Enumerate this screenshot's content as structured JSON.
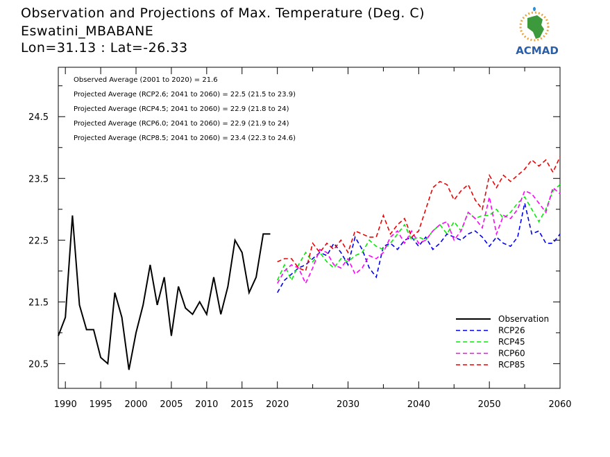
{
  "header": {
    "title": "Observation and Projections of Max. Temperature (Deg. C)",
    "location": "Eswatini_MBABANE",
    "coords": "Lon=31.13 : Lat=-26.33"
  },
  "logo": {
    "text": "ACMAD",
    "brand_color": "#e8a33a",
    "map_color": "#3c9a3c",
    "text_color": "#2a5fa8"
  },
  "chart_data": {
    "type": "line",
    "title": "Observation and Projections of Max. Temperature (Deg. C)",
    "xlabel": "",
    "ylabel": "",
    "xlim": [
      1989,
      2060
    ],
    "ylim": [
      20.1,
      25.3
    ],
    "grid": false,
    "legend_position": "bottom-right",
    "x_ticks": [
      {
        "v": 1990,
        "label": "1990"
      },
      {
        "v": 1995,
        "label": "1995"
      },
      {
        "v": 2000,
        "label": "2000"
      },
      {
        "v": 2005,
        "label": "2005"
      },
      {
        "v": 2010,
        "label": "2010"
      },
      {
        "v": 2015,
        "label": "2015"
      },
      {
        "v": 2020,
        "label": "2020"
      },
      {
        "v": 2030,
        "label": "2030"
      },
      {
        "v": 2040,
        "label": "2040"
      },
      {
        "v": 2050,
        "label": "2050"
      },
      {
        "v": 2060,
        "label": "2060"
      }
    ],
    "y_ticks": [
      {
        "v": 20.5,
        "label": "20.5"
      },
      {
        "v": 21.5,
        "label": "21.5"
      },
      {
        "v": 22.5,
        "label": "22.5"
      },
      {
        "v": 23.5,
        "label": "23.5"
      },
      {
        "v": 24.5,
        "label": "24.5"
      }
    ],
    "annotations": [
      "Observed Average (2001 to 2020) = 21.6",
      "Projected Average (RCP2.6; 2041 to 2060) = 22.5 (21.5 to 23.9)",
      "Projected Average (RCP4.5; 2041 to 2060) = 22.9 (21.8 to 24)",
      "Projected Average (RCP6.0; 2041 to 2060) = 22.9 (21.9 to 24)",
      "Projected Average (RCP8.5; 2041 to 2060) = 23.4 (22.3 to 24.6)"
    ],
    "series": [
      {
        "name": "Observation",
        "color": "#000000",
        "dash": false,
        "x": [
          1989,
          1990,
          1991,
          1992,
          1993,
          1994,
          1995,
          1996,
          1997,
          1998,
          1999,
          2000,
          2001,
          2002,
          2003,
          2004,
          2005,
          2006,
          2007,
          2008,
          2009,
          2010,
          2011,
          2012,
          2013,
          2014,
          2015,
          2016,
          2017,
          2018,
          2019
        ],
        "y": [
          20.95,
          21.25,
          22.9,
          21.45,
          21.05,
          21.05,
          20.6,
          20.5,
          21.65,
          21.25,
          20.4,
          21.0,
          21.45,
          22.1,
          21.45,
          21.9,
          20.95,
          21.75,
          21.4,
          21.3,
          21.5,
          21.3,
          21.9,
          21.3,
          21.75,
          22.5,
          22.3,
          21.65,
          21.9,
          22.6,
          22.6
        ]
      },
      {
        "name": "RCP26",
        "color": "#0000ee",
        "dash": true,
        "x": [
          2020,
          2021,
          2022,
          2023,
          2024,
          2025,
          2026,
          2027,
          2028,
          2029,
          2030,
          2031,
          2032,
          2033,
          2034,
          2035,
          2036,
          2037,
          2038,
          2039,
          2040,
          2041,
          2042,
          2043,
          2044,
          2045,
          2046,
          2047,
          2048,
          2049,
          2050,
          2051,
          2052,
          2053,
          2054,
          2055,
          2056,
          2057,
          2058,
          2059,
          2060
        ],
        "y": [
          21.65,
          21.85,
          21.95,
          22.05,
          22.1,
          22.2,
          22.3,
          22.25,
          22.45,
          22.3,
          22.1,
          22.55,
          22.35,
          22.05,
          21.9,
          22.4,
          22.45,
          22.35,
          22.5,
          22.55,
          22.4,
          22.55,
          22.35,
          22.45,
          22.6,
          22.55,
          22.5,
          22.6,
          22.65,
          22.55,
          22.4,
          22.55,
          22.45,
          22.4,
          22.55,
          23.1,
          22.6,
          22.65,
          22.45,
          22.45,
          22.6
        ]
      },
      {
        "name": "RCP45",
        "color": "#00ee00",
        "dash": true,
        "x": [
          2020,
          2021,
          2022,
          2023,
          2024,
          2025,
          2026,
          2027,
          2028,
          2029,
          2030,
          2031,
          2032,
          2033,
          2034,
          2035,
          2036,
          2037,
          2038,
          2039,
          2040,
          2041,
          2042,
          2043,
          2044,
          2045,
          2046,
          2047,
          2048,
          2049,
          2050,
          2051,
          2052,
          2053,
          2054,
          2055,
          2056,
          2057,
          2058,
          2059,
          2060
        ],
        "y": [
          21.85,
          22.1,
          21.85,
          22.1,
          22.3,
          22.15,
          22.3,
          22.15,
          22.05,
          22.2,
          22.15,
          22.25,
          22.3,
          22.5,
          22.4,
          22.35,
          22.45,
          22.6,
          22.75,
          22.5,
          22.55,
          22.5,
          22.65,
          22.75,
          22.6,
          22.8,
          22.65,
          22.95,
          22.85,
          22.9,
          22.9,
          23.0,
          22.85,
          22.95,
          23.1,
          23.2,
          23.0,
          22.8,
          23.0,
          23.3,
          23.4
        ]
      },
      {
        "name": "RCP60",
        "color": "#ff00ff",
        "dash": true,
        "x": [
          2020,
          2021,
          2022,
          2023,
          2024,
          2025,
          2026,
          2027,
          2028,
          2029,
          2030,
          2031,
          2032,
          2033,
          2034,
          2035,
          2036,
          2037,
          2038,
          2039,
          2040,
          2041,
          2042,
          2043,
          2044,
          2045,
          2046,
          2047,
          2048,
          2049,
          2050,
          2051,
          2052,
          2053,
          2054,
          2055,
          2056,
          2057,
          2058,
          2059,
          2060
        ],
        "y": [
          21.8,
          22.0,
          22.1,
          22.05,
          21.8,
          22.05,
          22.35,
          22.3,
          22.1,
          22.05,
          22.2,
          21.95,
          22.05,
          22.25,
          22.2,
          22.3,
          22.55,
          22.65,
          22.45,
          22.65,
          22.45,
          22.5,
          22.65,
          22.75,
          22.8,
          22.5,
          22.65,
          22.95,
          22.85,
          22.7,
          23.2,
          22.6,
          22.9,
          22.85,
          23.0,
          23.3,
          23.25,
          23.1,
          22.95,
          23.35,
          23.25
        ]
      },
      {
        "name": "RCP85",
        "color": "#ee0000",
        "dash": true,
        "x": [
          2020,
          2021,
          2022,
          2023,
          2024,
          2025,
          2026,
          2027,
          2028,
          2029,
          2030,
          2031,
          2032,
          2033,
          2034,
          2035,
          2036,
          2037,
          2038,
          2039,
          2040,
          2041,
          2042,
          2043,
          2044,
          2045,
          2046,
          2047,
          2048,
          2049,
          2050,
          2051,
          2052,
          2053,
          2054,
          2055,
          2056,
          2057,
          2058,
          2059,
          2060
        ],
        "y": [
          22.15,
          22.2,
          22.2,
          22.05,
          22.0,
          22.45,
          22.3,
          22.45,
          22.35,
          22.5,
          22.3,
          22.65,
          22.6,
          22.55,
          22.55,
          22.9,
          22.6,
          22.75,
          22.85,
          22.55,
          22.65,
          23.0,
          23.35,
          23.45,
          23.4,
          23.15,
          23.3,
          23.4,
          23.15,
          23.0,
          23.55,
          23.35,
          23.55,
          23.45,
          23.55,
          23.65,
          23.8,
          23.7,
          23.8,
          23.6,
          23.85
        ]
      }
    ]
  }
}
